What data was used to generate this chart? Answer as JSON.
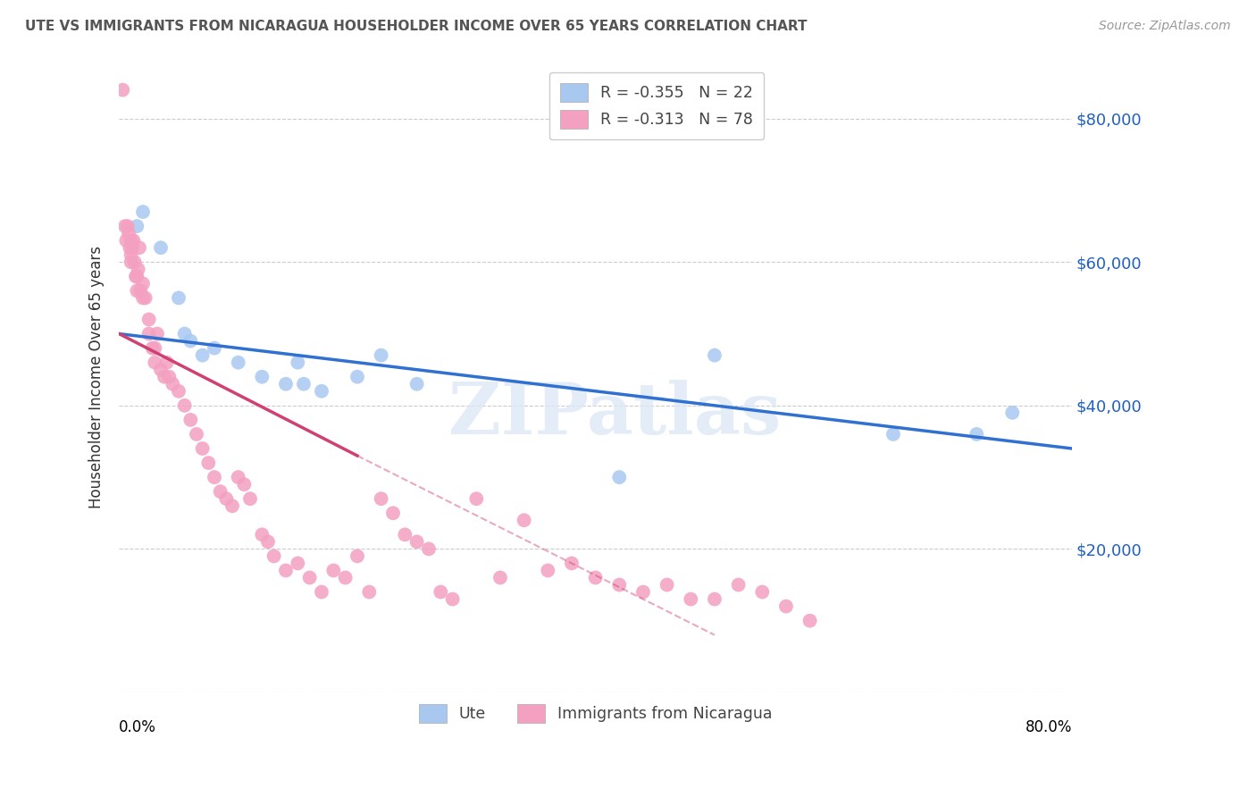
{
  "title": "UTE VS IMMIGRANTS FROM NICARAGUA HOUSEHOLDER INCOME OVER 65 YEARS CORRELATION CHART",
  "source": "Source: ZipAtlas.com",
  "ylabel": "Householder Income Over 65 years",
  "xlim": [
    0.0,
    80.0
  ],
  "ylim": [
    0,
    88000
  ],
  "yticks": [
    0,
    20000,
    40000,
    60000,
    80000
  ],
  "legend_label_ute": "R = -0.355   N = 22",
  "legend_label_nic": "R = -0.313   N = 78",
  "legend_labels_bottom": [
    "Ute",
    "Immigrants from Nicaragua"
  ],
  "ute_color": "#A8C8F0",
  "nic_color": "#F4A0C0",
  "ute_line_color": "#3070D0",
  "nic_line_color": "#D04070",
  "background_color": "#FFFFFF",
  "watermark": "ZIPatlas",
  "ute_points_x": [
    1.5,
    2.0,
    3.5,
    5.0,
    5.5,
    6.0,
    7.0,
    8.0,
    10.0,
    12.0,
    14.0,
    15.0,
    15.5,
    17.0,
    20.0,
    22.0,
    25.0,
    42.0,
    50.0,
    65.0,
    72.0,
    75.0
  ],
  "ute_points_y": [
    65000,
    67000,
    62000,
    55000,
    50000,
    49000,
    47000,
    48000,
    46000,
    44000,
    43000,
    46000,
    43000,
    42000,
    44000,
    47000,
    43000,
    30000,
    47000,
    36000,
    36000,
    39000
  ],
  "nic_points_x": [
    0.3,
    0.5,
    0.6,
    0.7,
    0.8,
    0.9,
    1.0,
    1.0,
    1.0,
    1.1,
    1.2,
    1.3,
    1.4,
    1.5,
    1.5,
    1.6,
    1.7,
    1.8,
    2.0,
    2.0,
    2.2,
    2.5,
    2.5,
    2.8,
    3.0,
    3.0,
    3.2,
    3.5,
    3.8,
    4.0,
    4.2,
    4.5,
    5.0,
    5.5,
    6.0,
    6.5,
    7.0,
    7.5,
    8.0,
    8.5,
    9.0,
    9.5,
    10.0,
    10.5,
    11.0,
    12.0,
    12.5,
    13.0,
    14.0,
    15.0,
    16.0,
    17.0,
    18.0,
    19.0,
    20.0,
    21.0,
    22.0,
    23.0,
    24.0,
    25.0,
    26.0,
    27.0,
    28.0,
    30.0,
    32.0,
    34.0,
    36.0,
    38.0,
    40.0,
    42.0,
    44.0,
    46.0,
    48.0,
    50.0,
    52.0,
    54.0,
    56.0,
    58.0
  ],
  "nic_points_y": [
    84000,
    65000,
    63000,
    65000,
    64000,
    62000,
    63000,
    61000,
    60000,
    62000,
    63000,
    60000,
    58000,
    58000,
    56000,
    59000,
    62000,
    56000,
    55000,
    57000,
    55000,
    52000,
    50000,
    48000,
    48000,
    46000,
    50000,
    45000,
    44000,
    46000,
    44000,
    43000,
    42000,
    40000,
    38000,
    36000,
    34000,
    32000,
    30000,
    28000,
    27000,
    26000,
    30000,
    29000,
    27000,
    22000,
    21000,
    19000,
    17000,
    18000,
    16000,
    14000,
    17000,
    16000,
    19000,
    14000,
    27000,
    25000,
    22000,
    21000,
    20000,
    14000,
    13000,
    27000,
    16000,
    24000,
    17000,
    18000,
    16000,
    15000,
    14000,
    15000,
    13000,
    13000,
    15000,
    14000,
    12000,
    10000
  ],
  "ute_line_x0": 0.0,
  "ute_line_y0": 50000,
  "ute_line_x1": 80.0,
  "ute_line_y1": 34000,
  "nic_line_x0": 0.0,
  "nic_line_y0": 50000,
  "nic_line_x1_solid": 20.0,
  "nic_line_y1_solid": 33000,
  "nic_line_x1_dash": 50.0,
  "nic_line_y1_dash": 8000
}
